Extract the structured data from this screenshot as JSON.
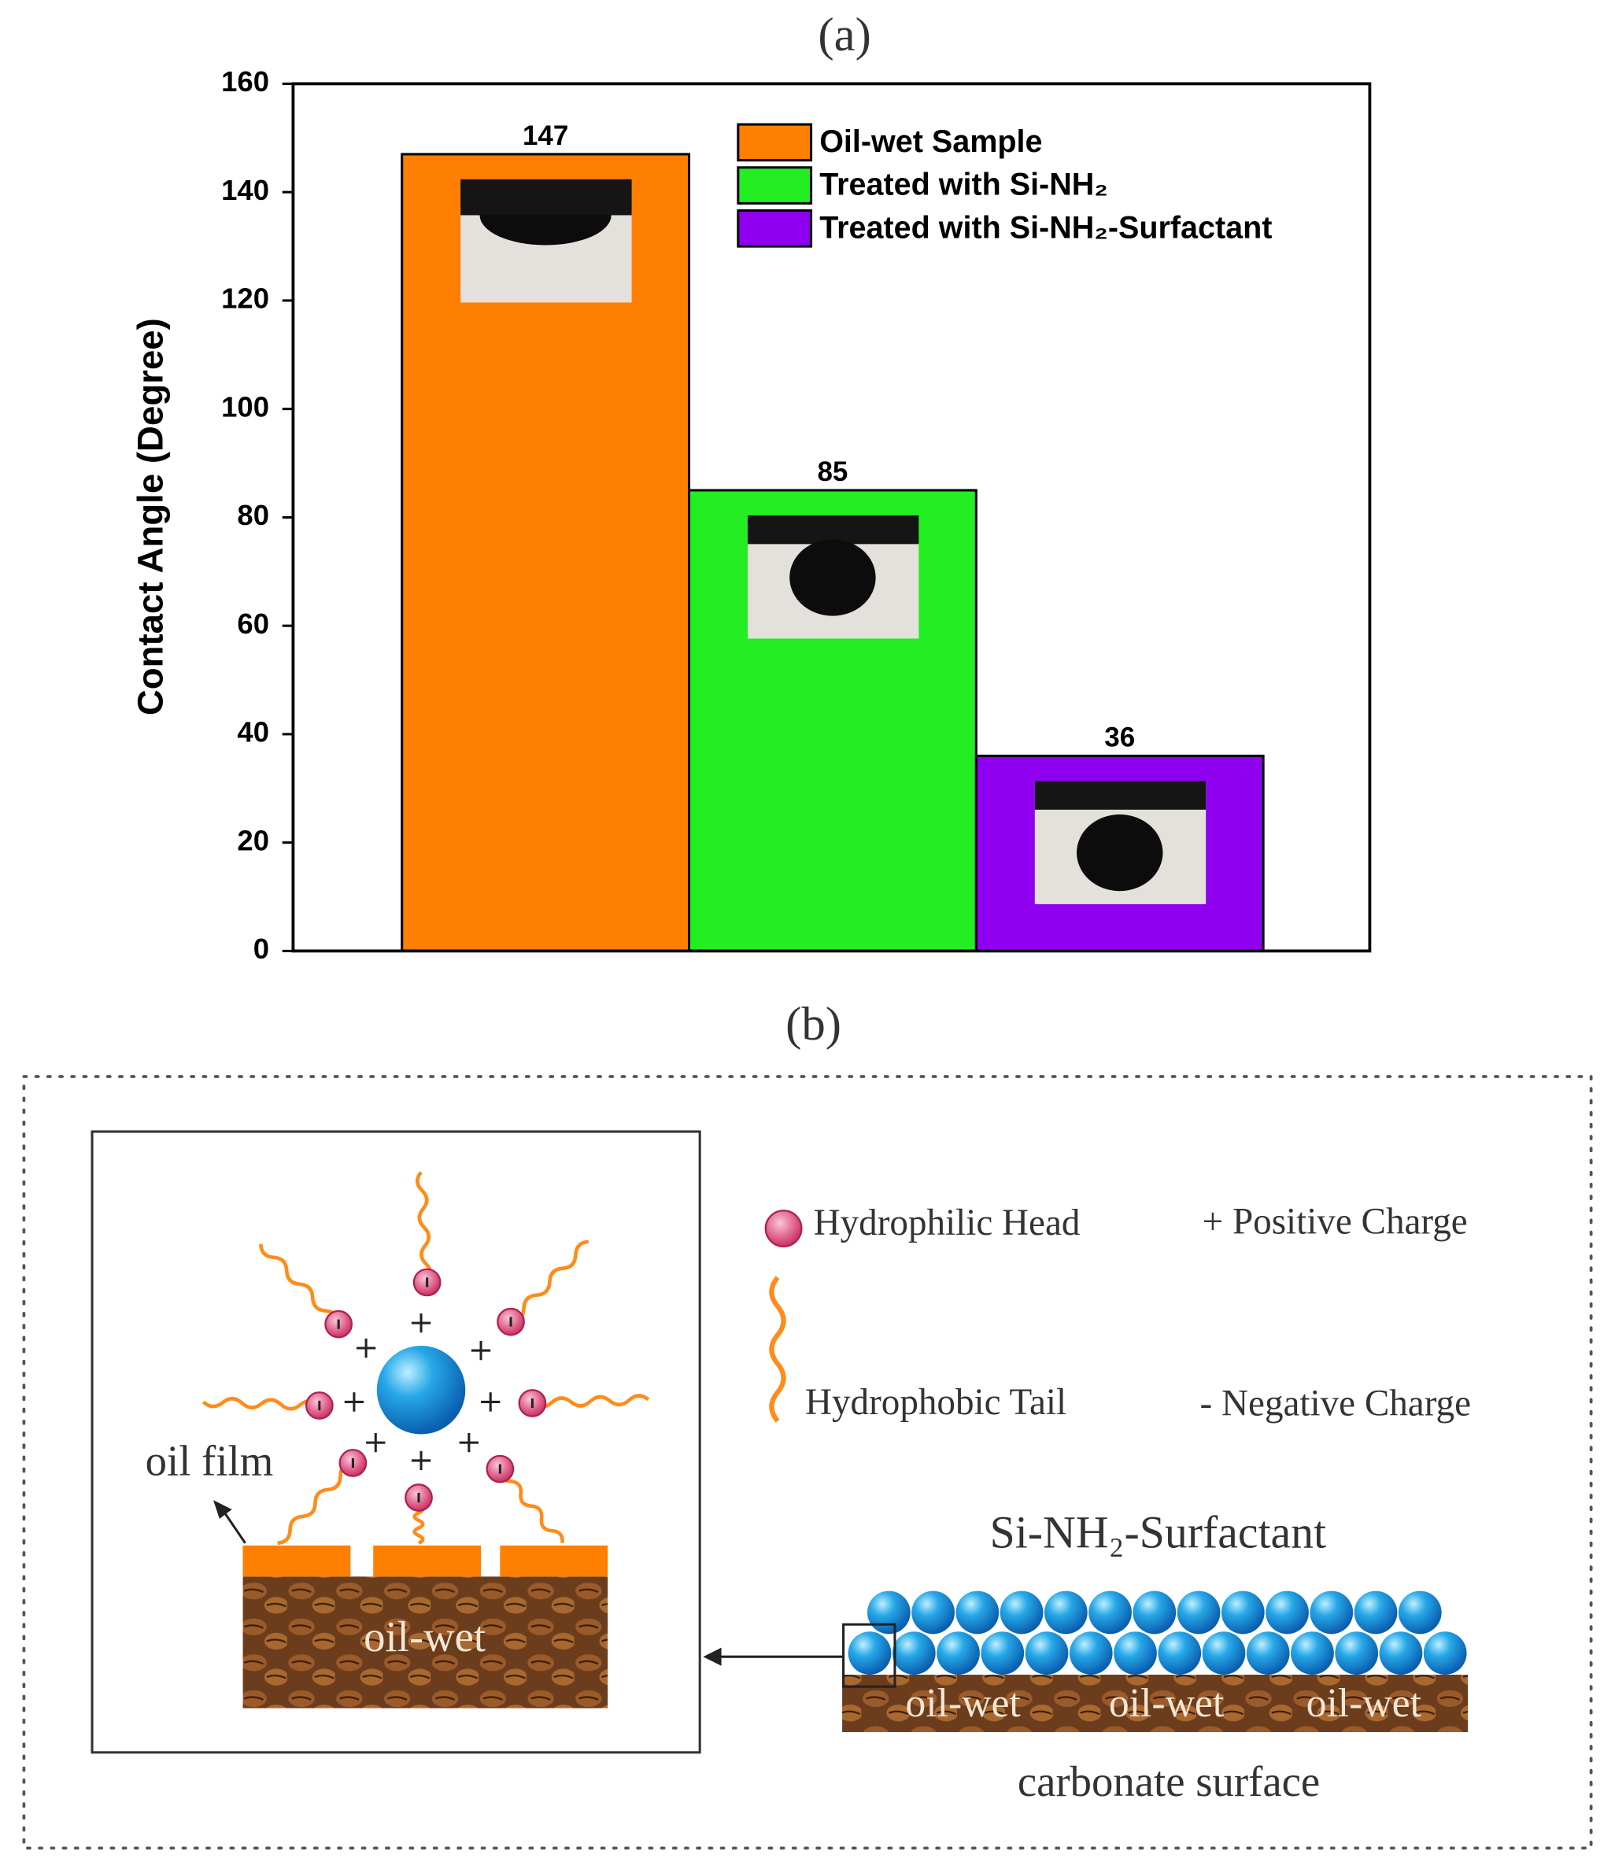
{
  "panel_labels": [
    "(a)",
    "(b)"
  ],
  "chart_data": {
    "type": "bar",
    "y_label": "Contact Angle (Degree)",
    "series": [
      {
        "name": "Oil-wet Sample",
        "color": "#ff7f00",
        "values": [
          147
        ]
      },
      {
        "name": "Treated with Si-NH₂",
        "color": "#22ee22",
        "values": [
          85
        ]
      },
      {
        "name": "Treated with Si-NH₂-Surfactant",
        "color": "#9000f0",
        "values": [
          36
        ]
      }
    ],
    "ylim": [
      0,
      160
    ],
    "yticks": [
      0,
      20,
      40,
      60,
      80,
      100,
      120,
      140,
      160
    ],
    "legend": "upper right"
  },
  "diagram": {
    "legend": {
      "head": "Hydrophilic Head",
      "positive": "+ Positive Charge",
      "tail": "Hydrophobic Tail",
      "negative": "- Negative Charge"
    },
    "oil_film": "oil film",
    "inset_rock": "oil-wet",
    "surface_title": "Si-NH₂-Surfactant",
    "rock_labels": [
      "oil-wet",
      "oil-wet",
      "oil-wet"
    ],
    "surface": "carbonate surface"
  }
}
